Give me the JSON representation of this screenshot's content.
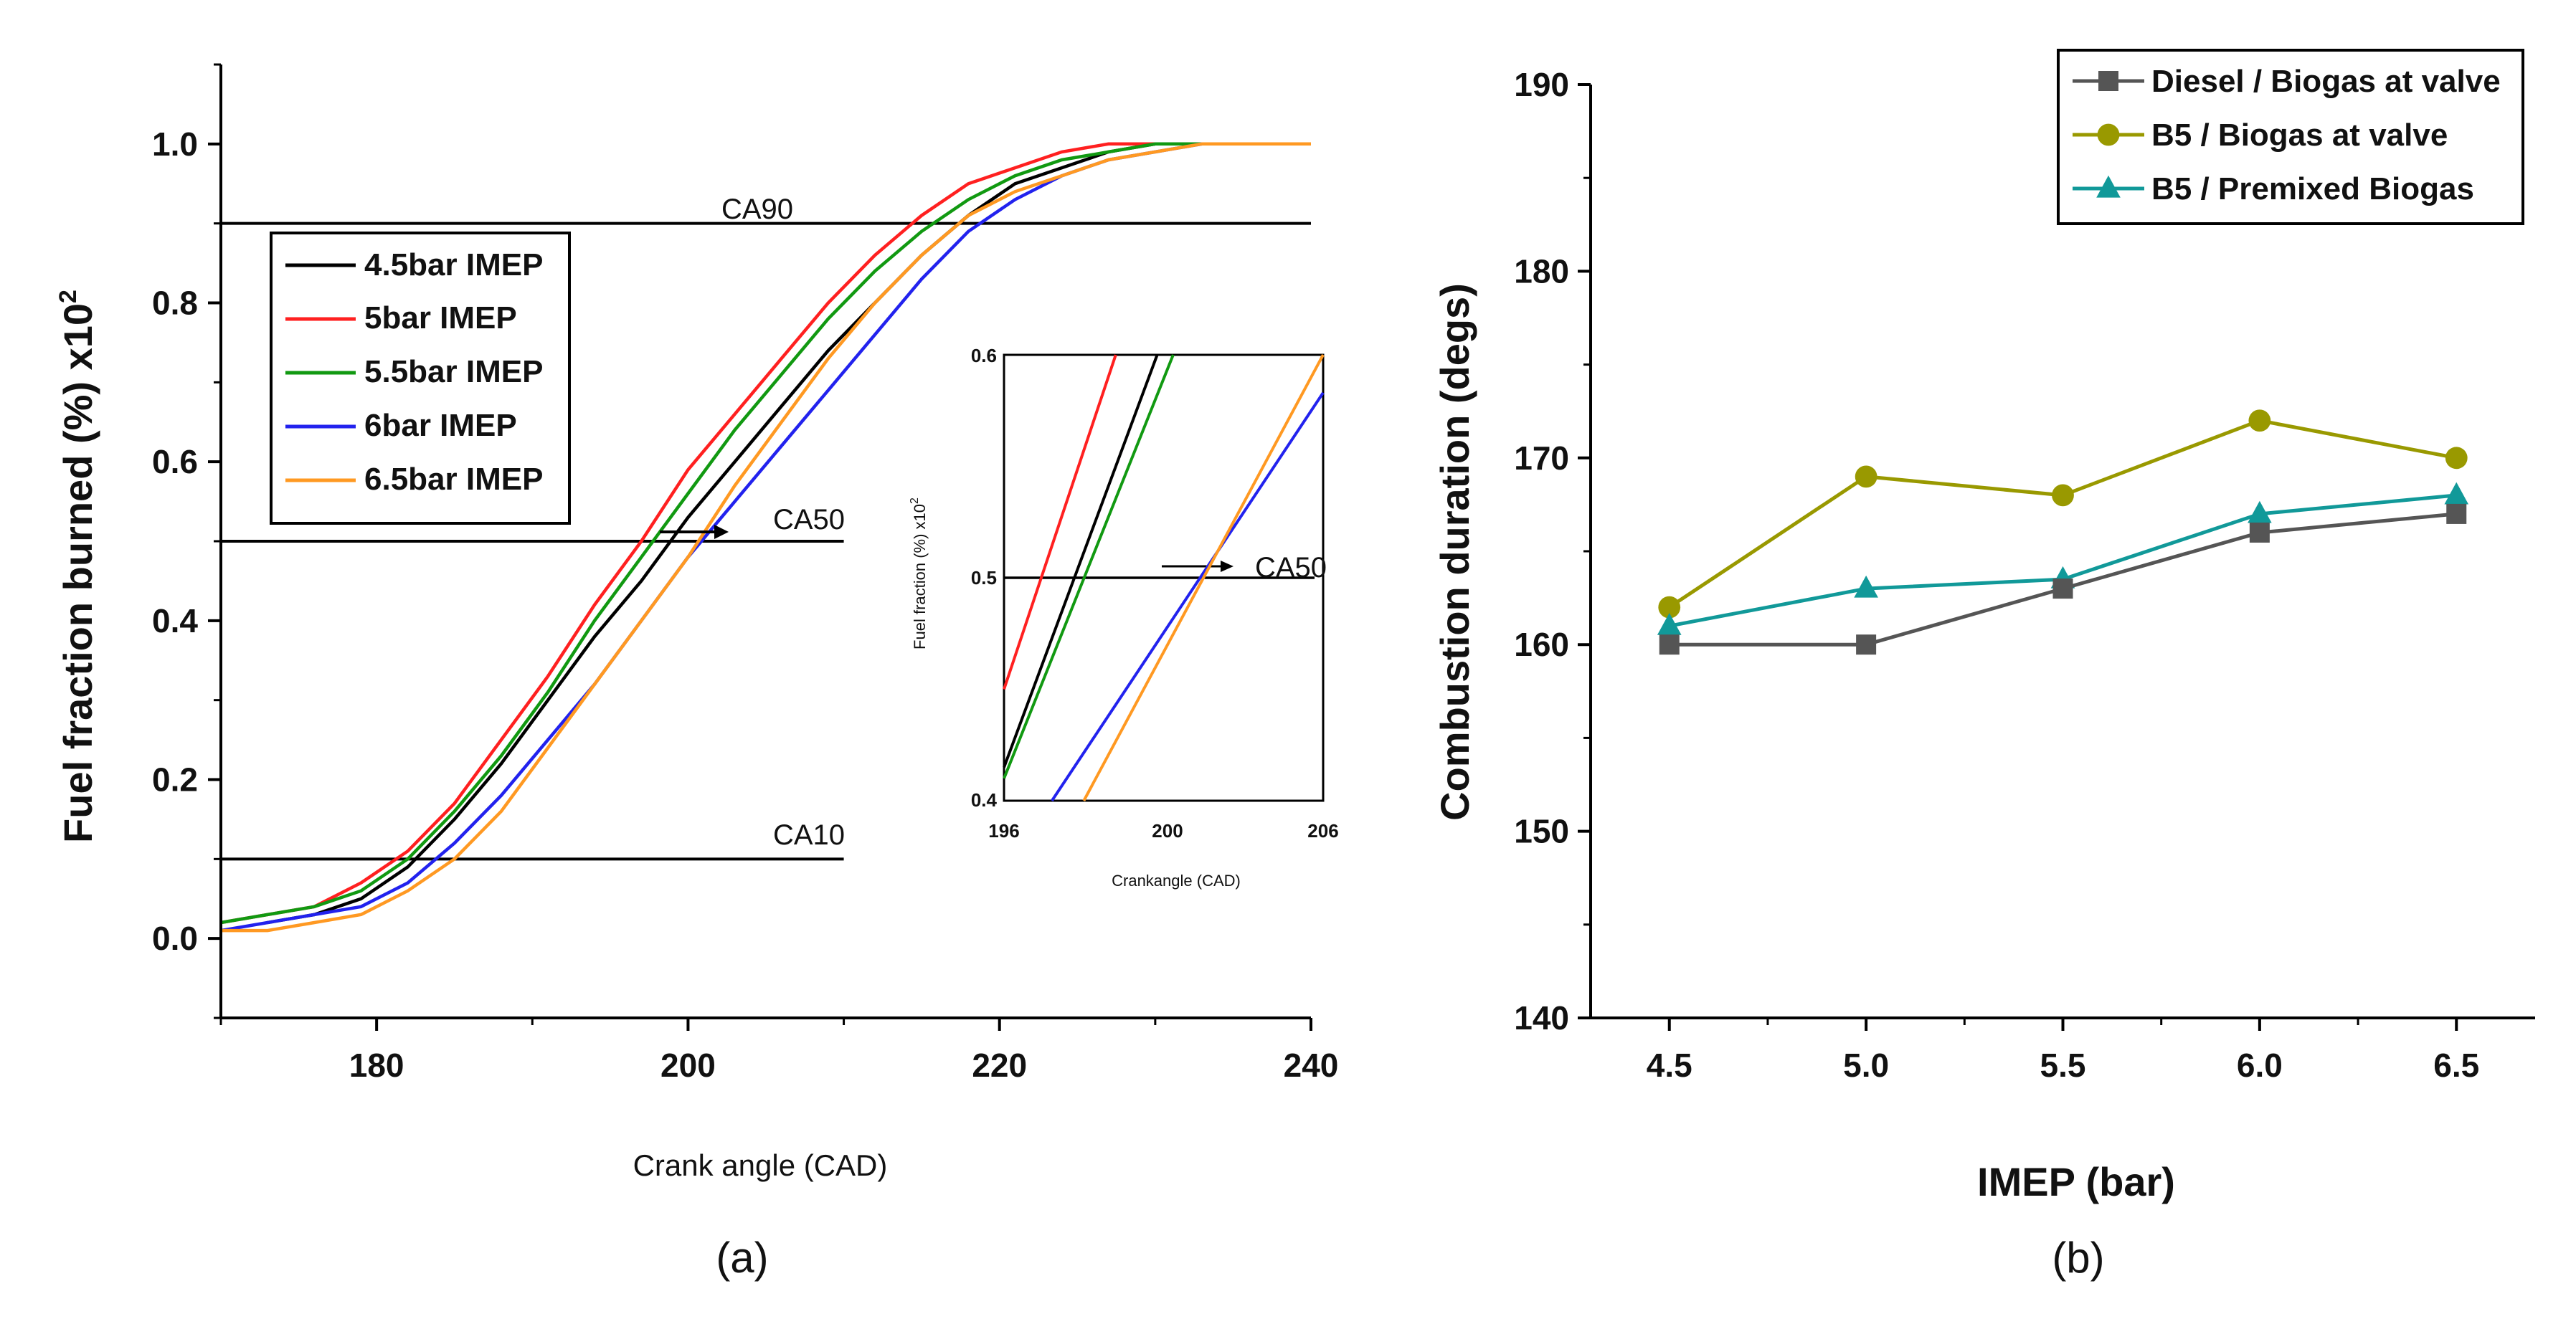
{
  "chart_data": [
    {
      "type": "line",
      "panel_label": "(a)",
      "title": "",
      "xlabel": "Crank angle (CAD)",
      "ylabel": "Fuel fraction burned (%) x10",
      "ylabel_sup": "2",
      "xlim": [
        170,
        240
      ],
      "ylim": [
        -0.1,
        1.1
      ],
      "xticks": [
        "180",
        "200",
        "220",
        "240"
      ],
      "yticks": [
        "0.0",
        "0.2",
        "0.4",
        "0.6",
        "0.8",
        "1.0"
      ],
      "legend_position": "upper-left",
      "series": [
        {
          "name": "4.5bar IMEP",
          "color": "#000000",
          "x": [
            173,
            176,
            179,
            182,
            185,
            188,
            191,
            194,
            197,
            200,
            203,
            206,
            209,
            212,
            215,
            218,
            221,
            224,
            227,
            230,
            233
          ],
          "y": [
            0.02,
            0.03,
            0.05,
            0.09,
            0.15,
            0.22,
            0.3,
            0.38,
            0.45,
            0.53,
            0.6,
            0.67,
            0.74,
            0.8,
            0.86,
            0.91,
            0.95,
            0.97,
            0.99,
            1.0,
            1.0
          ]
        },
        {
          "name": "5bar IMEP",
          "color": "#ff2020",
          "x": [
            170,
            173,
            176,
            179,
            182,
            185,
            188,
            191,
            194,
            197,
            200,
            203,
            206,
            209,
            212,
            215,
            218,
            221,
            224,
            227,
            230
          ],
          "y": [
            0.02,
            0.03,
            0.04,
            0.07,
            0.11,
            0.17,
            0.25,
            0.33,
            0.42,
            0.5,
            0.59,
            0.66,
            0.73,
            0.8,
            0.86,
            0.91,
            0.95,
            0.97,
            0.99,
            1.0,
            1.0
          ]
        },
        {
          "name": "5.5bar IMEP",
          "color": "#119911",
          "x": [
            170,
            173,
            176,
            179,
            182,
            185,
            188,
            191,
            194,
            197,
            200,
            203,
            206,
            209,
            212,
            215,
            218,
            221,
            224,
            227,
            230,
            233
          ],
          "y": [
            0.02,
            0.03,
            0.04,
            0.06,
            0.1,
            0.16,
            0.23,
            0.31,
            0.4,
            0.48,
            0.56,
            0.64,
            0.71,
            0.78,
            0.84,
            0.89,
            0.93,
            0.96,
            0.98,
            0.99,
            1.0,
            1.0
          ]
        },
        {
          "name": "6bar IMEP",
          "color": "#2222ee",
          "x": [
            170,
            173,
            176,
            179,
            182,
            185,
            188,
            191,
            194,
            197,
            200,
            203,
            206,
            209,
            212,
            215,
            218,
            221,
            224,
            227,
            230,
            233,
            235
          ],
          "y": [
            0.01,
            0.02,
            0.03,
            0.04,
            0.07,
            0.12,
            0.18,
            0.25,
            0.32,
            0.4,
            0.48,
            0.55,
            0.62,
            0.69,
            0.76,
            0.83,
            0.89,
            0.93,
            0.96,
            0.98,
            0.99,
            1.0,
            1.0
          ]
        },
        {
          "name": "6.5bar IMEP",
          "color": "#ff9922",
          "x": [
            170,
            173,
            176,
            179,
            182,
            185,
            188,
            191,
            194,
            197,
            200,
            203,
            206,
            209,
            212,
            215,
            218,
            221,
            224,
            227,
            230,
            233,
            236,
            240
          ],
          "y": [
            0.01,
            0.01,
            0.02,
            0.03,
            0.06,
            0.1,
            0.16,
            0.24,
            0.32,
            0.4,
            0.48,
            0.57,
            0.65,
            0.73,
            0.8,
            0.86,
            0.91,
            0.94,
            0.96,
            0.98,
            0.99,
            1.0,
            1.0,
            1.0
          ]
        }
      ],
      "reference_lines": [
        {
          "label": "CA90",
          "y": 0.9,
          "x_end": 240
        },
        {
          "label": "CA50",
          "y": 0.5,
          "x_end": 210
        },
        {
          "label": "CA10",
          "y": 0.1,
          "x_end": 210
        }
      ],
      "inset": {
        "xlabel": "Crankangle (CAD)",
        "ylabel": "Fuel fraction (%) x10",
        "ylabel_sup": "2",
        "xlim": [
          196,
          206
        ],
        "ylim": [
          0.4,
          0.6
        ],
        "xticks": [
          "196",
          "200",
          "206"
        ],
        "yticks": [
          "0.4",
          "0.5",
          "0.6"
        ],
        "annotation": "CA50",
        "annotation_y": 0.5,
        "series": [
          {
            "color": "#ff2020",
            "x": [
              196,
              199.5
            ],
            "y": [
              0.45,
              0.6
            ]
          },
          {
            "color": "#000000",
            "x": [
              196,
              200.8
            ],
            "y": [
              0.415,
              0.6
            ]
          },
          {
            "color": "#119911",
            "x": [
              196,
              201.3
            ],
            "y": [
              0.41,
              0.6
            ]
          },
          {
            "color": "#2222ee",
            "x": [
              197.5,
              206
            ],
            "y": [
              0.4,
              0.583
            ]
          },
          {
            "color": "#ff9922",
            "x": [
              198.5,
              206
            ],
            "y": [
              0.4,
              0.6
            ]
          }
        ]
      }
    },
    {
      "type": "line",
      "panel_label": "(b)",
      "title": "",
      "xlabel": "IMEP (bar)",
      "ylabel": "Combustion duration (degs)",
      "xlim": [
        4.3,
        6.7
      ],
      "ylim": [
        140,
        190
      ],
      "categories": [
        "4.5",
        "5.0",
        "5.5",
        "6.0",
        "6.5"
      ],
      "yticks": [
        "140",
        "150",
        "160",
        "170",
        "180",
        "190"
      ],
      "legend_position": "top-right",
      "series": [
        {
          "name": "Diesel / Biogas at valve",
          "color": "#555555",
          "marker": "square",
          "x": [
            4.5,
            5.0,
            5.5,
            6.0,
            6.5
          ],
          "values": [
            160,
            160,
            163,
            166,
            167
          ]
        },
        {
          "name": "B5 / Biogas at valve",
          "color": "#999900",
          "marker": "circle",
          "x": [
            4.5,
            5.0,
            5.5,
            6.0,
            6.5
          ],
          "values": [
            162,
            169,
            168,
            172,
            170
          ]
        },
        {
          "name": "B5 / Premixed Biogas",
          "color": "#119999",
          "marker": "triangle",
          "x": [
            4.5,
            5.0,
            5.5,
            6.0,
            6.5
          ],
          "values": [
            161,
            163,
            163.5,
            167,
            168
          ]
        }
      ]
    }
  ]
}
